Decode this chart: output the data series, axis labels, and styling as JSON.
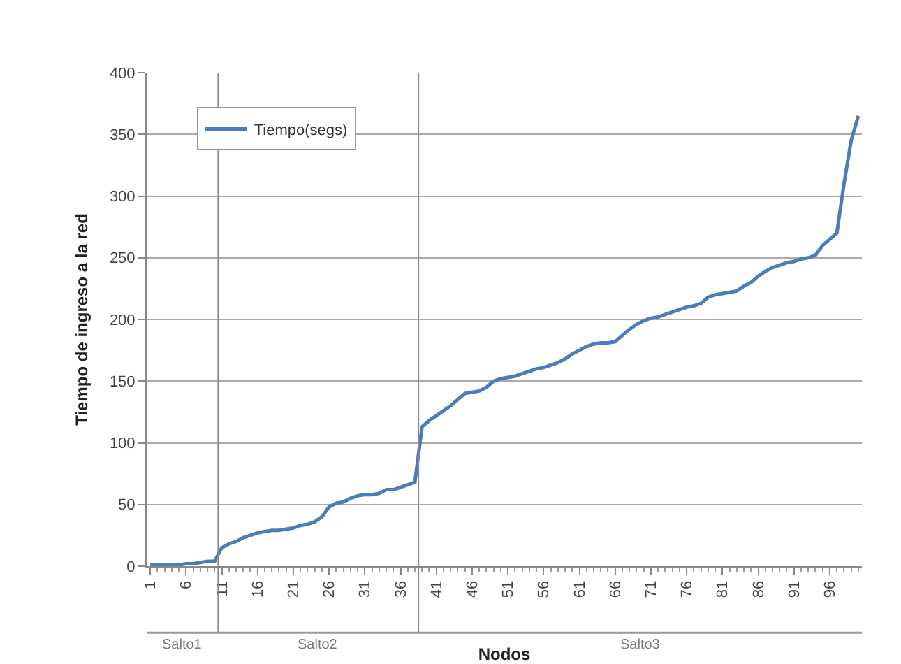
{
  "chart_data": {
    "type": "line",
    "xlabel": "Nodos",
    "ylabel": "Tiempo de ingreso a la red",
    "x": [
      1,
      2,
      3,
      4,
      5,
      6,
      7,
      8,
      9,
      10,
      11,
      12,
      13,
      14,
      15,
      16,
      17,
      18,
      19,
      20,
      21,
      22,
      23,
      24,
      25,
      26,
      27,
      28,
      29,
      30,
      31,
      32,
      33,
      34,
      35,
      36,
      37,
      38,
      39,
      40,
      41,
      42,
      43,
      44,
      45,
      46,
      47,
      48,
      49,
      50,
      51,
      52,
      53,
      54,
      55,
      56,
      57,
      58,
      59,
      60,
      61,
      62,
      63,
      64,
      65,
      66,
      67,
      68,
      69,
      70,
      71,
      72,
      73,
      74,
      75,
      76,
      77,
      78,
      79,
      80,
      81,
      82,
      83,
      84,
      85,
      86,
      87,
      88,
      89,
      90,
      91,
      92,
      93,
      94,
      95,
      96,
      97,
      98,
      99,
      100
    ],
    "series": [
      {
        "name": "Tiempo(segs)",
        "color": "#4a7ebb",
        "values": [
          1,
          1,
          1,
          1,
          1,
          2,
          2,
          3,
          4,
          4,
          15,
          18,
          20,
          23,
          25,
          27,
          28,
          29,
          29,
          30,
          31,
          33,
          34,
          36,
          40,
          48,
          51,
          52,
          55,
          57,
          58,
          58,
          59,
          62,
          62,
          64,
          66,
          68,
          113,
          118,
          122,
          126,
          130,
          135,
          140,
          141,
          142,
          145,
          150,
          152,
          153,
          154,
          156,
          158,
          160,
          161,
          163,
          165,
          168,
          172,
          175,
          178,
          180,
          181,
          181,
          182,
          187,
          192,
          196,
          199,
          201,
          202,
          204,
          206,
          208,
          210,
          211,
          213,
          218,
          220,
          221,
          222,
          223,
          227,
          230,
          235,
          239,
          242,
          244,
          246,
          247,
          249,
          250,
          252,
          260,
          265,
          270,
          310,
          345,
          365
        ]
      }
    ],
    "xlim": [
      0.5,
      100.5
    ],
    "xticks": [
      1,
      6,
      11,
      16,
      21,
      26,
      31,
      36,
      41,
      46,
      51,
      56,
      61,
      66,
      71,
      76,
      81,
      86,
      91,
      96
    ],
    "ylim": [
      0,
      400
    ],
    "yticks": [
      0,
      50,
      100,
      150,
      200,
      250,
      300,
      350,
      400
    ],
    "ref_lines": [
      {
        "axis": "x",
        "value": 10.5
      },
      {
        "axis": "x",
        "value": 38.5
      }
    ],
    "annotations": [
      "Salto1",
      "Salto2",
      "Salto3"
    ],
    "grid": "y",
    "legend": "top left",
    "marker": "none",
    "line_style": "solid"
  }
}
